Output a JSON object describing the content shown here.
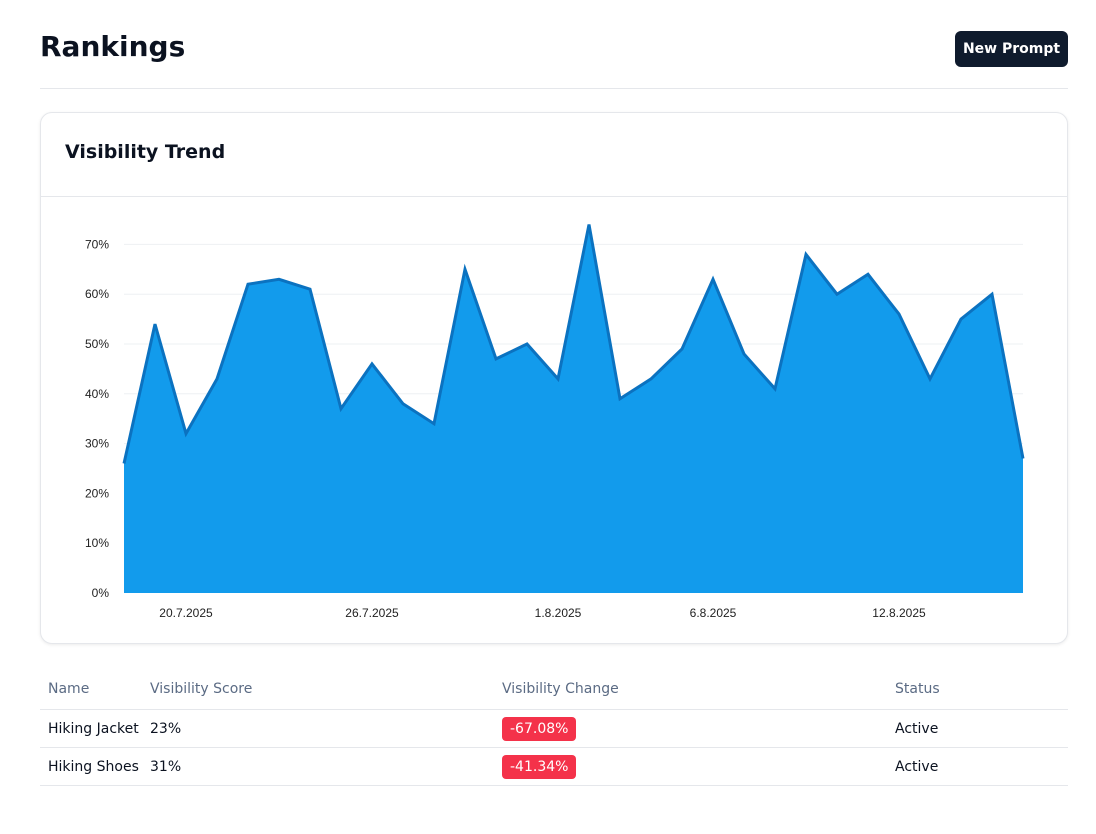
{
  "header": {
    "title": "Rankings",
    "new_prompt_label": "New Prompt"
  },
  "chart_card": {
    "title": "Visibility Trend"
  },
  "colors": {
    "area_fill": "#129bec",
    "area_stroke": "#0b72c0",
    "badge_negative": "#f4324a",
    "button_bg": "#0f1b2d"
  },
  "chart_data": {
    "type": "area",
    "x": [
      "18.7.2025",
      "19.7.2025",
      "20.7.2025",
      "21.7.2025",
      "22.7.2025",
      "23.7.2025",
      "24.7.2025",
      "25.7.2025",
      "26.7.2025",
      "27.7.2025",
      "28.7.2025",
      "29.7.2025",
      "30.7.2025",
      "31.7.2025",
      "1.8.2025",
      "2.8.2025",
      "3.8.2025",
      "4.8.2025",
      "5.8.2025",
      "6.8.2025",
      "7.8.2025",
      "8.8.2025",
      "9.8.2025",
      "10.8.2025",
      "11.8.2025",
      "12.8.2025",
      "13.8.2025",
      "14.8.2025",
      "15.8.2025",
      "16.8.2025"
    ],
    "x_tick_labels": [
      "20.7.2025",
      "26.7.2025",
      "1.8.2025",
      "6.8.2025",
      "12.8.2025"
    ],
    "series": [
      {
        "values": [
          26,
          54,
          32,
          43,
          62,
          63,
          61,
          37,
          46,
          38,
          34,
          65,
          47,
          50,
          43,
          74,
          39,
          43,
          49,
          63,
          48,
          41,
          68,
          60,
          64,
          56,
          43,
          55,
          60,
          27
        ]
      }
    ],
    "y_tick_labels": [
      "0%",
      "10%",
      "20%",
      "30%",
      "40%",
      "50%",
      "60%",
      "70%"
    ],
    "ylim": [
      0,
      70
    ],
    "grid": true
  },
  "table": {
    "columns": [
      "Name",
      "Visibility Score",
      "Visibility Change",
      "Status"
    ],
    "rows": [
      {
        "name": "Hiking Jacket",
        "score": "23%",
        "change": "-67.08%",
        "status": "Active"
      },
      {
        "name": "Hiking Shoes",
        "score": "31%",
        "change": "-41.34%",
        "status": "Active"
      }
    ]
  }
}
